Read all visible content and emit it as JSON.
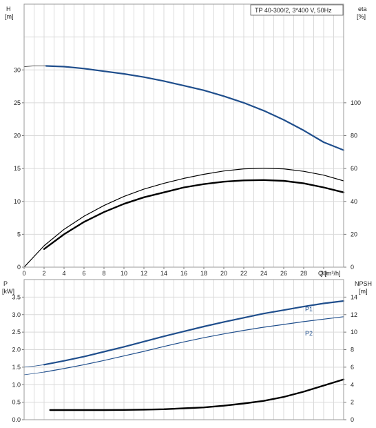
{
  "chart_data": {
    "type": "line",
    "title": "TP 40-300/2, 3*400 V, 50Hz",
    "x": {
      "label": "Q [m³/h]",
      "range": [
        0,
        32
      ],
      "ticks": [
        0,
        2,
        4,
        6,
        8,
        10,
        12,
        14,
        16,
        18,
        20,
        22,
        24,
        26,
        28,
        30
      ]
    },
    "top": {
      "left_axis": {
        "label_line1": "H",
        "label_line2": "[m]",
        "range": [
          0,
          40
        ],
        "ticks": [
          0,
          5,
          10,
          15,
          20,
          25,
          30
        ]
      },
      "right_axis": {
        "label_line1": "eta",
        "label_line2": "[%]",
        "range": [
          0,
          160
        ],
        "ticks": [
          0,
          20,
          40,
          60,
          80,
          100
        ]
      },
      "series": [
        {
          "name": "H (extrapolated)",
          "axis": "left",
          "color": "#222222",
          "width": 0.8,
          "points": [
            [
              0,
              30.5
            ],
            [
              1,
              30.6
            ],
            [
              2.2,
              30.6
            ]
          ]
        },
        {
          "name": "H",
          "axis": "left",
          "color": "#1f4e8c",
          "width": 2.2,
          "points": [
            [
              2.2,
              30.6
            ],
            [
              4,
              30.5
            ],
            [
              6,
              30.2
            ],
            [
              8,
              29.8
            ],
            [
              10,
              29.4
            ],
            [
              12,
              28.9
            ],
            [
              14,
              28.3
            ],
            [
              16,
              27.6
            ],
            [
              18,
              26.9
            ],
            [
              20,
              26.0
            ],
            [
              22,
              25.0
            ],
            [
              24,
              23.8
            ],
            [
              26,
              22.4
            ],
            [
              28,
              20.8
            ],
            [
              30,
              19.0
            ],
            [
              32,
              17.8
            ]
          ]
        },
        {
          "name": "eta pump",
          "axis": "right",
          "color": "#000000",
          "width": 1.2,
          "points": [
            [
              0,
              0
            ],
            [
              2,
              13
            ],
            [
              4,
              23
            ],
            [
              6,
              31
            ],
            [
              8,
              37.5
            ],
            [
              10,
              43
            ],
            [
              12,
              47.5
            ],
            [
              14,
              51
            ],
            [
              16,
              54
            ],
            [
              18,
              56.5
            ],
            [
              20,
              58.5
            ],
            [
              22,
              59.8
            ],
            [
              24,
              60.2
            ],
            [
              26,
              59.8
            ],
            [
              28,
              58.3
            ],
            [
              30,
              56
            ],
            [
              32,
              52.5
            ]
          ]
        },
        {
          "name": "eta total",
          "axis": "right",
          "color": "#000000",
          "width": 2.4,
          "points": [
            [
              2,
              11
            ],
            [
              4,
              20
            ],
            [
              6,
              27.5
            ],
            [
              8,
              33.5
            ],
            [
              10,
              38.5
            ],
            [
              12,
              42.5
            ],
            [
              14,
              45.5
            ],
            [
              16,
              48.5
            ],
            [
              18,
              50.5
            ],
            [
              20,
              52
            ],
            [
              22,
              52.8
            ],
            [
              24,
              53
            ],
            [
              26,
              52.5
            ],
            [
              28,
              51
            ],
            [
              30,
              48.5
            ],
            [
              32,
              45.5
            ]
          ]
        }
      ]
    },
    "bottom": {
      "left_axis": {
        "label_line1": "P",
        "label_line2": "[kW]",
        "range": [
          0,
          4
        ],
        "ticks": [
          0.0,
          0.5,
          1.0,
          1.5,
          2.0,
          2.5,
          3.0,
          3.5
        ],
        "tick_labels": [
          "0.0",
          "0.5",
          "1.0",
          "1.5",
          "2.0",
          "2.5",
          "3.0",
          "3.5"
        ]
      },
      "right_axis": {
        "label_line1": "NPSH",
        "label_line2": "[m]",
        "range": [
          0,
          16
        ],
        "ticks": [
          0,
          2,
          4,
          6,
          8,
          10,
          12,
          14
        ]
      },
      "series": [
        {
          "name": "P1 (extrapolated)",
          "axis": "left",
          "color": "#1f4e8c",
          "width": 0.8,
          "points": [
            [
              0,
              1.5
            ],
            [
              1,
              1.53
            ],
            [
              2,
              1.57
            ]
          ]
        },
        {
          "name": "P1",
          "label": "P1",
          "axis": "left",
          "color": "#1f4e8c",
          "width": 2.2,
          "points": [
            [
              2,
              1.57
            ],
            [
              4,
              1.68
            ],
            [
              6,
              1.8
            ],
            [
              8,
              1.94
            ],
            [
              10,
              2.08
            ],
            [
              12,
              2.23
            ],
            [
              14,
              2.38
            ],
            [
              16,
              2.52
            ],
            [
              18,
              2.66
            ],
            [
              20,
              2.79
            ],
            [
              22,
              2.91
            ],
            [
              24,
              3.03
            ],
            [
              26,
              3.13
            ],
            [
              28,
              3.23
            ],
            [
              30,
              3.32
            ],
            [
              32,
              3.39
            ]
          ]
        },
        {
          "name": "P2 (extrapolated)",
          "axis": "left",
          "color": "#1f4e8c",
          "width": 0.8,
          "points": [
            [
              0,
              1.28
            ],
            [
              1,
              1.32
            ],
            [
              2,
              1.36
            ]
          ]
        },
        {
          "name": "P2",
          "label": "P2",
          "axis": "left",
          "color": "#1f4e8c",
          "width": 1.2,
          "points": [
            [
              2,
              1.36
            ],
            [
              4,
              1.46
            ],
            [
              6,
              1.57
            ],
            [
              8,
              1.69
            ],
            [
              10,
              1.82
            ],
            [
              12,
              1.95
            ],
            [
              14,
              2.09
            ],
            [
              16,
              2.22
            ],
            [
              18,
              2.34
            ],
            [
              20,
              2.45
            ],
            [
              22,
              2.55
            ],
            [
              24,
              2.64
            ],
            [
              26,
              2.72
            ],
            [
              28,
              2.8
            ],
            [
              30,
              2.87
            ],
            [
              32,
              2.94
            ]
          ]
        },
        {
          "name": "NPSH",
          "axis": "right",
          "color": "#000000",
          "width": 2.4,
          "points": [
            [
              2.6,
              1.1
            ],
            [
              4,
              1.1
            ],
            [
              6,
              1.1
            ],
            [
              8,
              1.1
            ],
            [
              10,
              1.12
            ],
            [
              12,
              1.15
            ],
            [
              14,
              1.2
            ],
            [
              16,
              1.3
            ],
            [
              18,
              1.4
            ],
            [
              20,
              1.6
            ],
            [
              22,
              1.85
            ],
            [
              24,
              2.15
            ],
            [
              26,
              2.6
            ],
            [
              28,
              3.2
            ],
            [
              30,
              3.9
            ],
            [
              32,
              4.6
            ]
          ]
        }
      ]
    }
  }
}
